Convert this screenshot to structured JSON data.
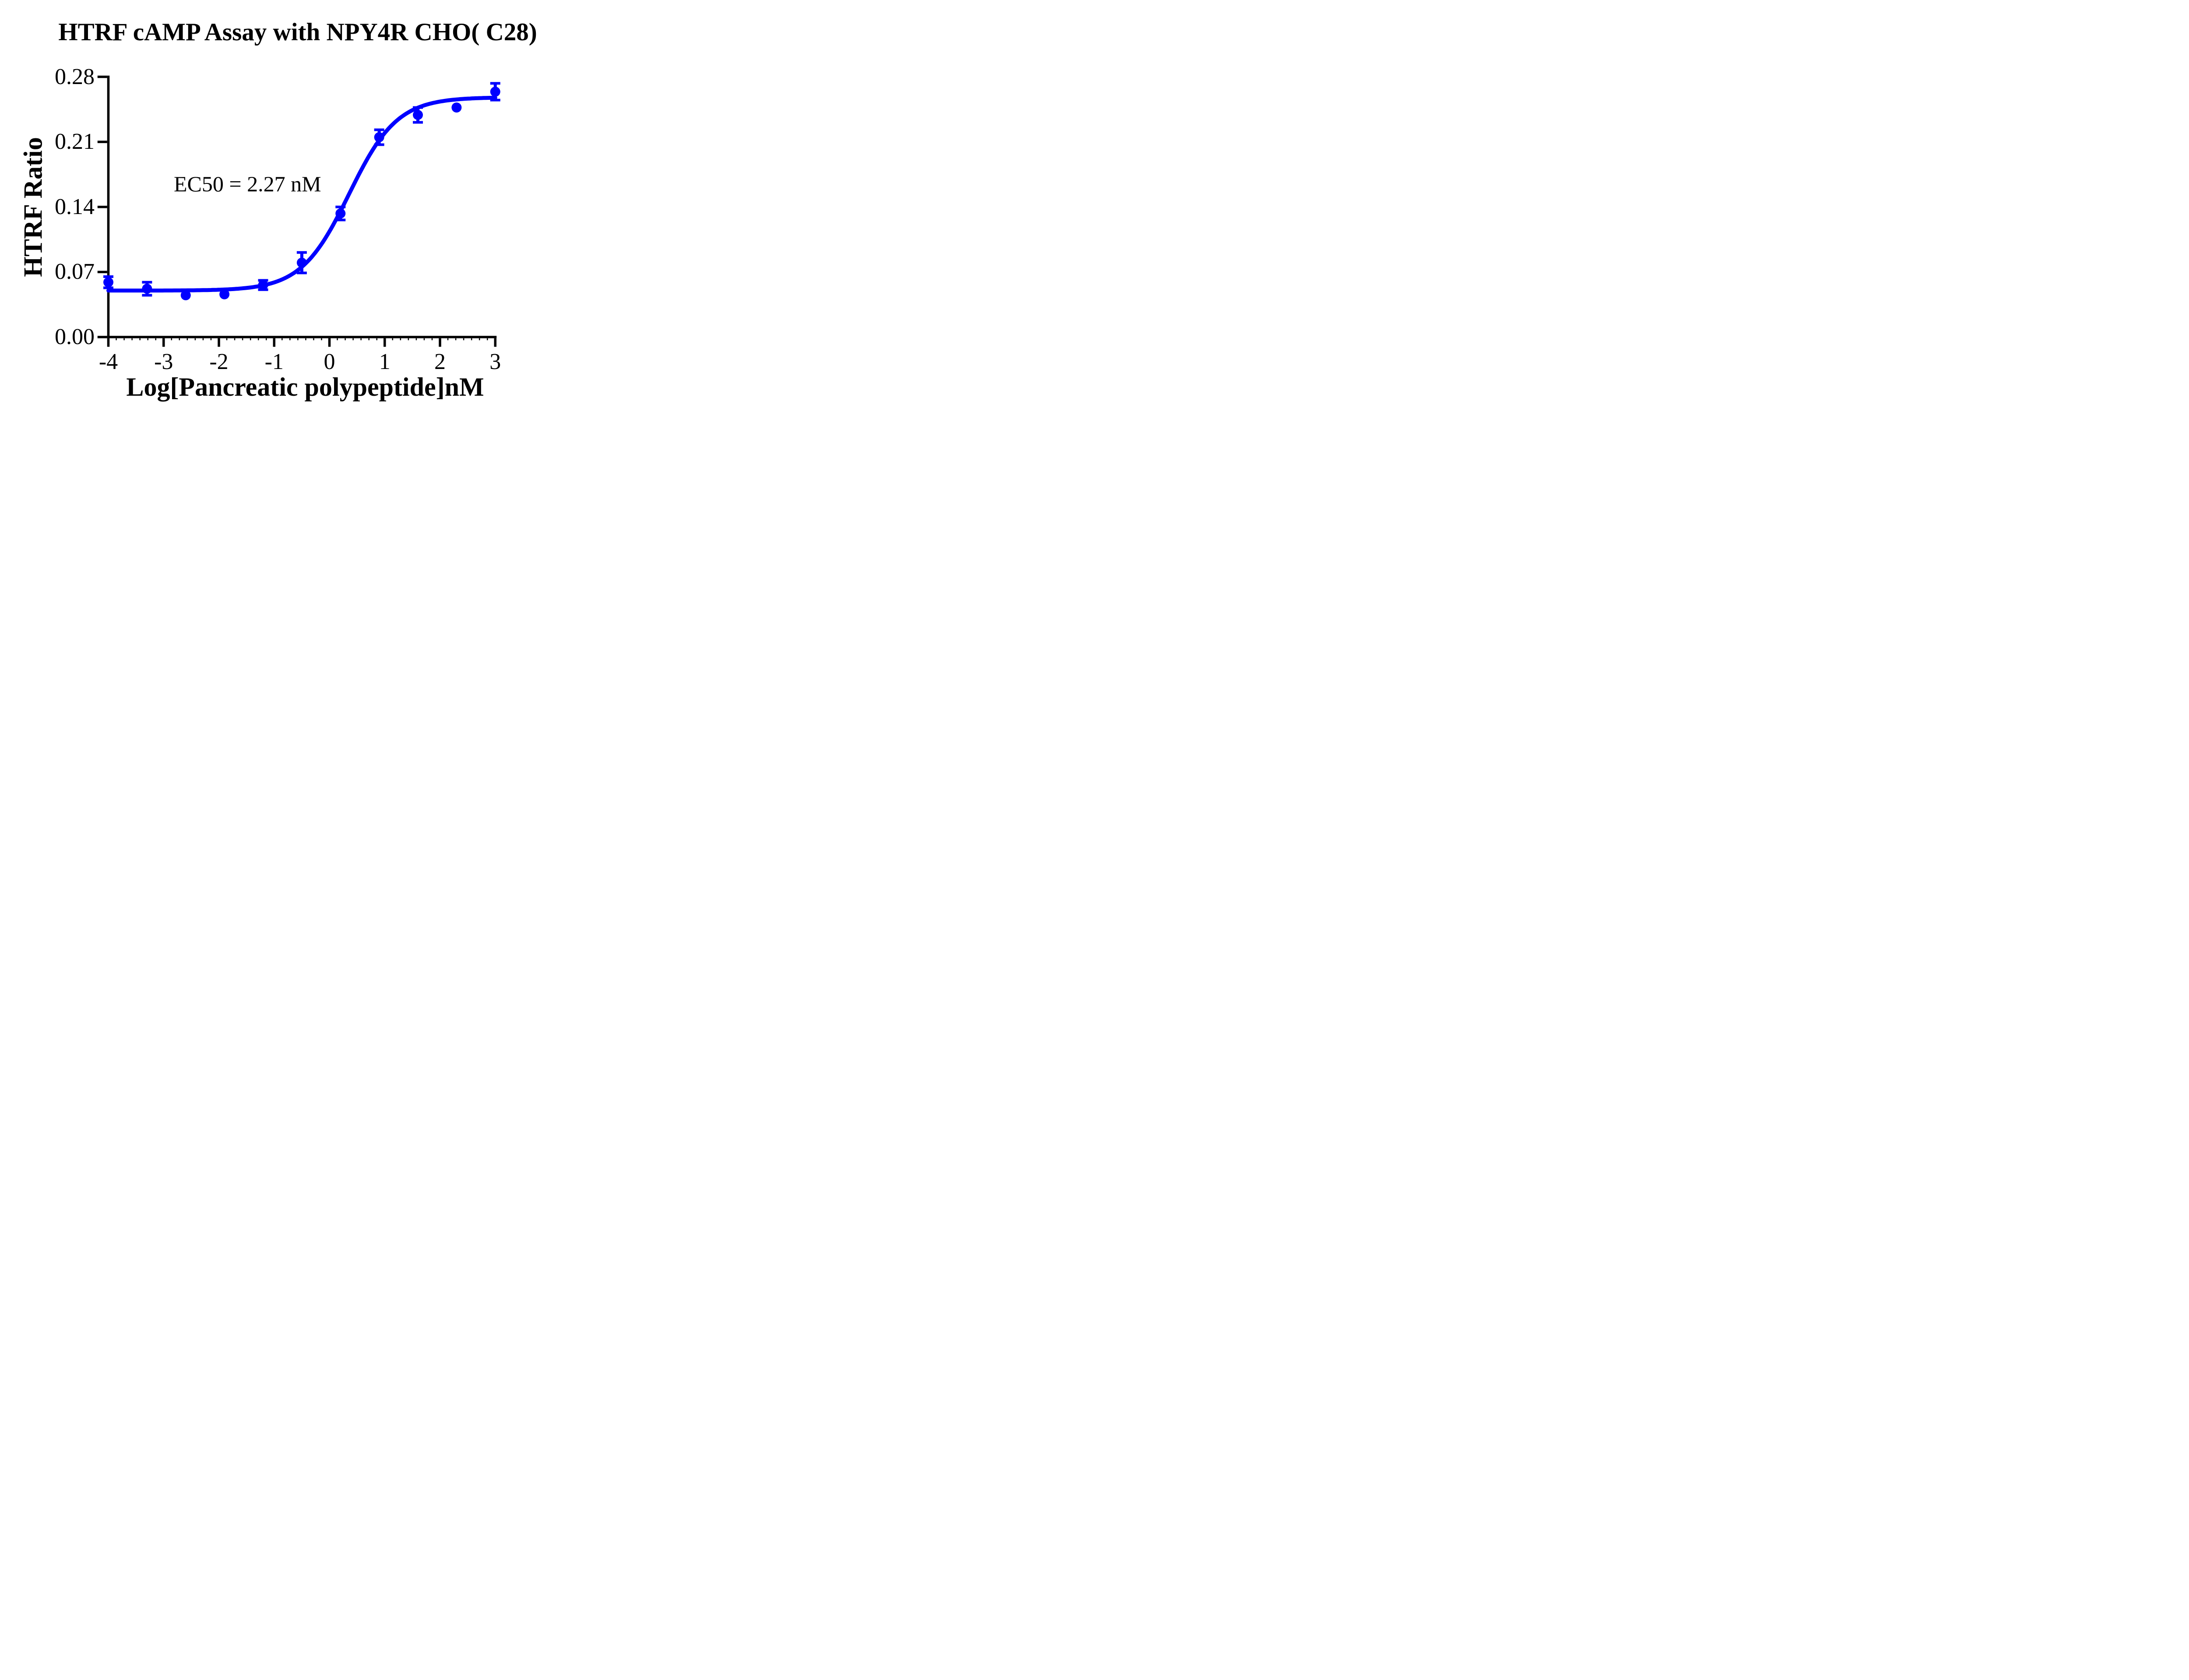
{
  "chart_data": {
    "type": "scatter",
    "title": "HTRF cAMP Assay with NPY4R CHO( C28)",
    "xlabel": "Log[Pancreatic polypeptide]nM",
    "ylabel": "HTRF Ratio",
    "annotation": "EC50 = 2.27 nM",
    "series_color": "#0000FF",
    "axis_color": "#000000",
    "xlim": [
      -4,
      3
    ],
    "ylim": [
      0,
      0.28
    ],
    "x_ticks": [
      -4,
      -3,
      -2,
      -1,
      0,
      1,
      2,
      3
    ],
    "x_tick_labels": [
      "-4",
      "-3",
      "-2",
      "-1",
      "0",
      "1",
      "2",
      "3"
    ],
    "x_minor_divisions_per_unit": 7,
    "y_ticks": [
      0,
      0.07,
      0.14,
      0.21,
      0.28
    ],
    "y_tick_labels": [
      "0.00",
      "0.07",
      "0.14",
      "0.21",
      "0.28"
    ],
    "grid": false,
    "legend": "none",
    "series": [
      {
        "name": "Pancreatic polypeptide",
        "x": [
          -4.0,
          -3.3,
          -2.6,
          -1.9,
          -1.2,
          -0.5,
          0.2,
          0.9,
          1.6,
          2.3,
          3.0
        ],
        "y": [
          0.059,
          0.052,
          0.045,
          0.046,
          0.056,
          0.08,
          0.133,
          0.215,
          0.239,
          0.247,
          0.264
        ],
        "yerr": [
          0.006,
          0.007,
          0,
          0,
          0.005,
          0.011,
          0.007,
          0.008,
          0.008,
          0,
          0.009
        ]
      }
    ],
    "fit": {
      "model": "4PL sigmoidal dose-response",
      "bottom": 0.05,
      "top": 0.258,
      "logEC50": 0.356,
      "hill": 1.0,
      "ec50_nM": 2.27
    }
  }
}
